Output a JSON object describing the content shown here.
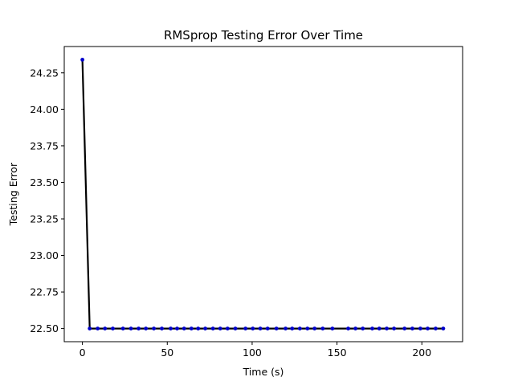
{
  "chart_data": {
    "type": "line",
    "title": "RMSprop Testing Error Over Time",
    "xlabel": "Time (s)",
    "ylabel": "Testing Error",
    "xlim": [
      -10.7,
      224
    ],
    "ylim": [
      22.41,
      24.43
    ],
    "xticks": [
      0,
      50,
      100,
      150,
      200
    ],
    "xtick_labels": [
      "0",
      "50",
      "100",
      "150",
      "200"
    ],
    "yticks": [
      22.5,
      22.75,
      23.0,
      23.25,
      23.5,
      23.75,
      24.0,
      24.25
    ],
    "ytick_labels": [
      "22.50",
      "22.75",
      "23.00",
      "23.25",
      "23.50",
      "23.75",
      "24.00",
      "24.25"
    ],
    "grid": false,
    "line_color": "#000000",
    "marker_color": "#0000cc",
    "series": [
      {
        "x": [
          0,
          4.3,
          9.0,
          13.3,
          17.9,
          23.9,
          28.6,
          33.1,
          37.4,
          42.1,
          46.8,
          52.0,
          55.8,
          59.9,
          64.2,
          68.2,
          72.4,
          76.9,
          81.2,
          85.5,
          90.1,
          96.1,
          100.4,
          104.8,
          109.1,
          114.3,
          119.7,
          123.6,
          128.1,
          132.6,
          136.8,
          141.6,
          147.3,
          156.6,
          160.9,
          165.2,
          170.8,
          174.9,
          179.3,
          183.6,
          189.8,
          194.4,
          199.1,
          203.4,
          208.1,
          212.6
        ],
        "y": [
          24.34,
          22.5,
          22.5,
          22.5,
          22.5,
          22.5,
          22.5,
          22.5,
          22.5,
          22.5,
          22.5,
          22.5,
          22.5,
          22.5,
          22.5,
          22.5,
          22.5,
          22.5,
          22.5,
          22.5,
          22.5,
          22.5,
          22.5,
          22.5,
          22.5,
          22.5,
          22.5,
          22.5,
          22.5,
          22.5,
          22.5,
          22.5,
          22.5,
          22.5,
          22.5,
          22.5,
          22.5,
          22.5,
          22.5,
          22.5,
          22.5,
          22.5,
          22.5,
          22.5,
          22.5,
          22.5
        ]
      }
    ]
  }
}
